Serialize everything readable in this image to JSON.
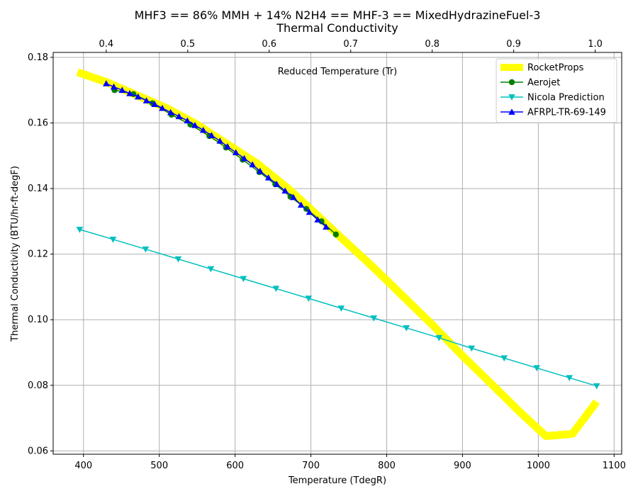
{
  "chart_data": {
    "type": "line",
    "title_line1": "MHF3 == 86% MMH + 14% N2H4 == MHF-3 == MixedHydrazineFuel-3",
    "title_line2": "Thermal Conductivity",
    "xlabel": "Temperature (TdegR)",
    "ylabel": "Thermal Conductivity (BTU/hr-ft-degF)",
    "top_axis_label": "Reduced Temperature (Tr)",
    "xlim": [
      360,
      1110
    ],
    "ylim": [
      0.059,
      0.1815
    ],
    "x_ticks": [
      400,
      500,
      600,
      700,
      800,
      900,
      1000,
      1100
    ],
    "y_ticks": [
      0.06,
      0.08,
      0.1,
      0.12,
      0.14,
      0.16,
      0.18
    ],
    "y_tick_labels": [
      "0.06",
      "0.08",
      "0.10",
      "0.12",
      "0.14",
      "0.16",
      "0.18"
    ],
    "top_ticks": [
      0.4,
      0.5,
      0.6,
      0.7,
      0.8,
      0.9,
      1.0
    ],
    "top_ticks_x": [
      430,
      537.5,
      645,
      752.5,
      860,
      967.5,
      1075
    ],
    "grid": true,
    "legend_position": "top-right",
    "series": [
      {
        "name": "RocketProps",
        "color": "#ffff00",
        "marker": "none",
        "x": [
          392,
          430,
          470,
          510,
          550,
          590,
          630,
          670,
          710,
          740,
          780,
          820,
          860,
          900,
          940,
          975,
          1010,
          1045,
          1077
        ],
        "y": [
          0.1755,
          0.1725,
          0.1685,
          0.1645,
          0.1595,
          0.1535,
          0.1475,
          0.14,
          0.1315,
          0.125,
          0.1165,
          0.1075,
          0.0985,
          0.089,
          0.08,
          0.072,
          0.0645,
          0.0652,
          0.075
        ]
      },
      {
        "name": "Aerojet",
        "color": "#008000",
        "marker": "circle",
        "x": [
          441,
          466,
          491,
          516,
          541,
          566,
          588,
          610,
          632,
          653,
          673,
          694,
          714,
          733
        ],
        "y": [
          0.17,
          0.1688,
          0.166,
          0.1625,
          0.1595,
          0.156,
          0.1525,
          0.1488,
          0.145,
          0.1413,
          0.1375,
          0.1338,
          0.13,
          0.126
        ]
      },
      {
        "name": "Nicola Prediction",
        "color": "#00bfbf",
        "marker": "triangle-down",
        "x": [
          395,
          439,
          482,
          525,
          568,
          611,
          654,
          697,
          740,
          783,
          826,
          869,
          912,
          955,
          998,
          1041,
          1077
        ],
        "y": [
          0.1275,
          0.1245,
          0.1215,
          0.1185,
          0.1155,
          0.1125,
          0.1095,
          0.1065,
          0.1035,
          0.1005,
          0.0975,
          0.0945,
          0.0913,
          0.0883,
          0.0853,
          0.0823,
          0.0798
        ]
      },
      {
        "name": "AFRPL-TR-69-149",
        "color": "#0000ff",
        "marker": "triangle-up",
        "x": [
          430,
          440,
          451,
          461,
          472,
          483,
          494,
          504,
          515,
          526,
          537,
          547,
          558,
          569,
          580,
          590,
          601,
          612,
          623,
          633,
          644,
          655,
          666,
          677,
          687,
          698,
          709,
          720
        ],
        "y": [
          0.172,
          0.171,
          0.17,
          0.169,
          0.168,
          0.1668,
          0.1657,
          0.1645,
          0.1632,
          0.162,
          0.1607,
          0.1593,
          0.1578,
          0.1562,
          0.1545,
          0.1528,
          0.151,
          0.1492,
          0.1473,
          0.1453,
          0.1433,
          0.1413,
          0.1393,
          0.1373,
          0.135,
          0.1328,
          0.1305,
          0.1283
        ]
      }
    ]
  }
}
